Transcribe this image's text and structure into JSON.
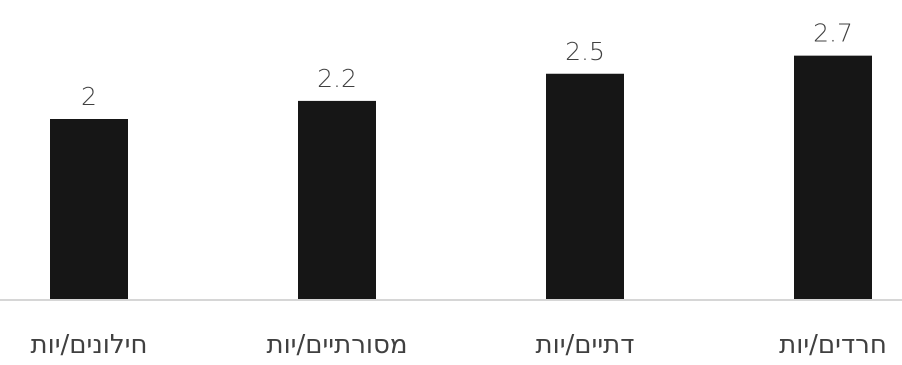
{
  "chart_data": {
    "type": "bar",
    "categories": [
      "חילונים/יות",
      "מסורתיים/יות",
      "דתיים/יות",
      "חרדים/יות"
    ],
    "values": [
      2,
      2.2,
      2.5,
      2.7
    ],
    "data_labels": [
      "2",
      "2.2",
      "2.5",
      "2.7"
    ],
    "title": "",
    "xlabel": "",
    "ylabel": "",
    "ylim": [
      0,
      3
    ],
    "grid": false,
    "legend": "none",
    "bar_color": "#161616",
    "text_color": "#404040",
    "axis_color": "#d6d6d6"
  }
}
